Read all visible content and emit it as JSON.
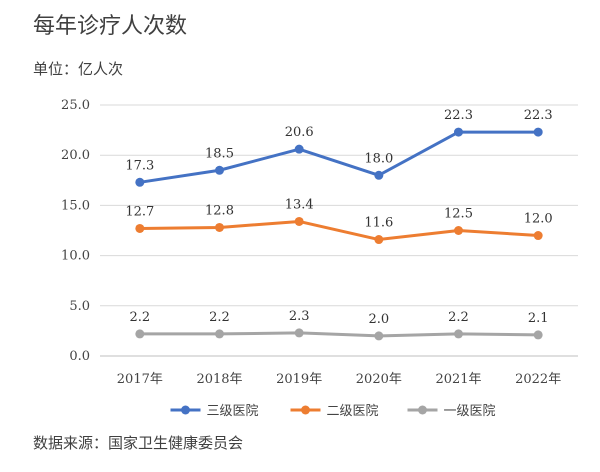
{
  "title": "每年诊疗人次数",
  "unit_label": "单位：亿人次",
  "source": "数据来源：国家卫生健康委员会",
  "chart_data": {
    "type": "line",
    "categories": [
      "2017年",
      "2018年",
      "2019年",
      "2020年",
      "2021年",
      "2022年"
    ],
    "ylim": [
      0,
      25
    ],
    "yticks": [
      "0.0",
      "5.0",
      "10.0",
      "15.0",
      "20.0",
      "25.0"
    ],
    "grid": true,
    "legend_position": "bottom",
    "series": [
      {
        "name": "三级医院",
        "color": "#4472c4",
        "values": [
          17.3,
          18.5,
          20.6,
          18.0,
          22.3,
          22.3
        ],
        "labels": [
          "17.3",
          "18.5",
          "20.6",
          "18.0",
          "22.3",
          "22.3"
        ]
      },
      {
        "name": "二级医院",
        "color": "#ed7d31",
        "values": [
          12.7,
          12.8,
          13.4,
          11.6,
          12.5,
          12.0
        ],
        "labels": [
          "12.7",
          "12.8",
          "13.4",
          "11.6",
          "12.5",
          "12.0"
        ]
      },
      {
        "name": "一级医院",
        "color": "#a5a5a5",
        "values": [
          2.2,
          2.2,
          2.3,
          2.0,
          2.2,
          2.1
        ],
        "labels": [
          "2.2",
          "2.2",
          "2.3",
          "2.0",
          "2.2",
          "2.1"
        ]
      }
    ]
  }
}
